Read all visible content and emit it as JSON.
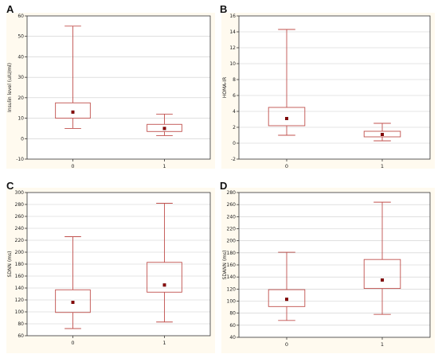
{
  "panels": [
    {
      "letter": "A"
    },
    {
      "letter": "B"
    },
    {
      "letter": "C"
    },
    {
      "letter": "D"
    }
  ],
  "colors": {
    "panel_background": "#fffaef",
    "plot_background": "#ffffff",
    "box_stroke": "#c0504d",
    "mean_marker": "#8b0000",
    "grid": "#cccccc"
  },
  "chart_data": [
    {
      "type": "box",
      "ylabel": "Insulin level (uIU/ml)",
      "categories": [
        "0",
        "1"
      ],
      "ylim": [
        -10,
        60
      ],
      "yticks": [
        -10,
        0,
        10,
        20,
        30,
        40,
        50,
        60
      ],
      "grid": true,
      "boxes": [
        {
          "category": "0",
          "min": 5,
          "q1": 10,
          "mean": 13,
          "q3": 17.5,
          "max": 55
        },
        {
          "category": "1",
          "min": 1.5,
          "q1": 3.5,
          "mean": 5,
          "q3": 7,
          "max": 12
        }
      ]
    },
    {
      "type": "box",
      "ylabel": "HOMA-IR",
      "categories": [
        "0",
        "1"
      ],
      "ylim": [
        -2,
        16
      ],
      "yticks": [
        -2,
        0,
        2,
        4,
        6,
        8,
        10,
        12,
        14,
        16
      ],
      "grid": true,
      "boxes": [
        {
          "category": "0",
          "min": 1,
          "q1": 2.2,
          "mean": 3.1,
          "q3": 4.5,
          "max": 14.3
        },
        {
          "category": "1",
          "min": 0.3,
          "q1": 0.8,
          "mean": 1.1,
          "q3": 1.5,
          "max": 2.5
        }
      ]
    },
    {
      "type": "box",
      "ylabel": "SDNN (ms)",
      "categories": [
        "0",
        "1"
      ],
      "ylim": [
        60,
        300
      ],
      "yticks": [
        60,
        80,
        100,
        120,
        140,
        160,
        180,
        200,
        220,
        240,
        260,
        280,
        300
      ],
      "grid": true,
      "boxes": [
        {
          "category": "0",
          "min": 72,
          "q1": 99,
          "mean": 116,
          "q3": 137,
          "max": 226
        },
        {
          "category": "1",
          "min": 83,
          "q1": 133,
          "mean": 145,
          "q3": 183,
          "max": 282
        }
      ]
    },
    {
      "type": "box",
      "ylabel": "SDANN (ms)",
      "categories": [
        "0",
        "1"
      ],
      "ylim": [
        40,
        280
      ],
      "yticks": [
        40,
        60,
        80,
        100,
        120,
        140,
        160,
        180,
        200,
        220,
        240,
        260,
        280
      ],
      "grid": true,
      "boxes": [
        {
          "category": "0",
          "min": 68,
          "q1": 91,
          "mean": 103,
          "q3": 119,
          "max": 181
        },
        {
          "category": "1",
          "min": 78,
          "q1": 121,
          "mean": 135,
          "q3": 169,
          "max": 264
        }
      ]
    }
  ]
}
